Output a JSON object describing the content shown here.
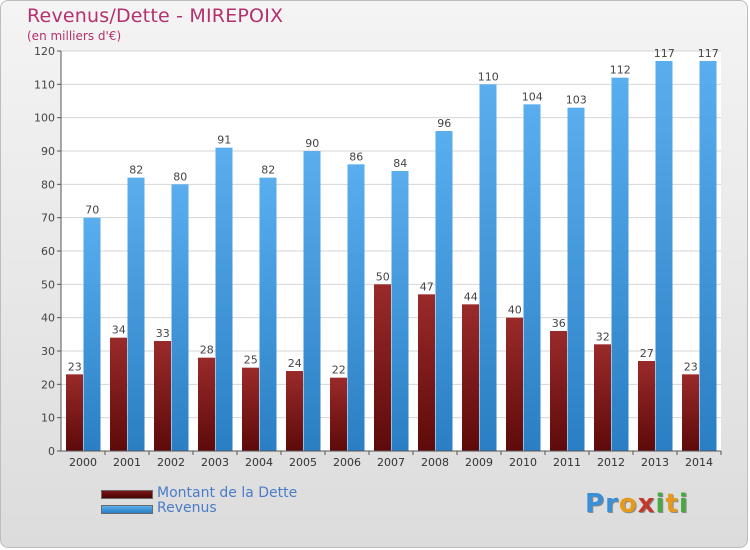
{
  "chart_data": {
    "type": "bar",
    "title": "Revenus/Dette - MIREPOIX",
    "subtitle": "(en milliers d'€)",
    "categories": [
      "2000",
      "2001",
      "2002",
      "2003",
      "2004",
      "2005",
      "2006",
      "2007",
      "2008",
      "2009",
      "2010",
      "2011",
      "2012",
      "2013",
      "2014"
    ],
    "series": [
      {
        "name": "Montant de la Dette",
        "color": "#8b1a1a",
        "values": [
          23,
          34,
          33,
          28,
          25,
          24,
          22,
          50,
          47,
          44,
          40,
          36,
          32,
          27,
          23
        ]
      },
      {
        "name": "Revenus",
        "color": "#3a96db",
        "values": [
          70,
          82,
          80,
          91,
          82,
          90,
          86,
          84,
          96,
          110,
          104,
          103,
          112,
          117,
          117
        ]
      }
    ],
    "ylim": [
      0,
      120
    ],
    "yticks": [
      0,
      10,
      20,
      30,
      40,
      50,
      60,
      70,
      80,
      90,
      100,
      110,
      120
    ],
    "grid": true,
    "legend_position": "bottom-left"
  },
  "brand": {
    "letters": [
      {
        "char": "P",
        "color": "#3a8fd6"
      },
      {
        "char": "r",
        "color": "#3a8fd6"
      },
      {
        "char": "o",
        "color": "#e59a1e"
      },
      {
        "char": "x",
        "color": "#c0392b"
      },
      {
        "char": "i",
        "color": "#4aa843"
      },
      {
        "char": "t",
        "color": "#e59a1e"
      },
      {
        "char": "i",
        "color": "#4aa843"
      }
    ]
  }
}
